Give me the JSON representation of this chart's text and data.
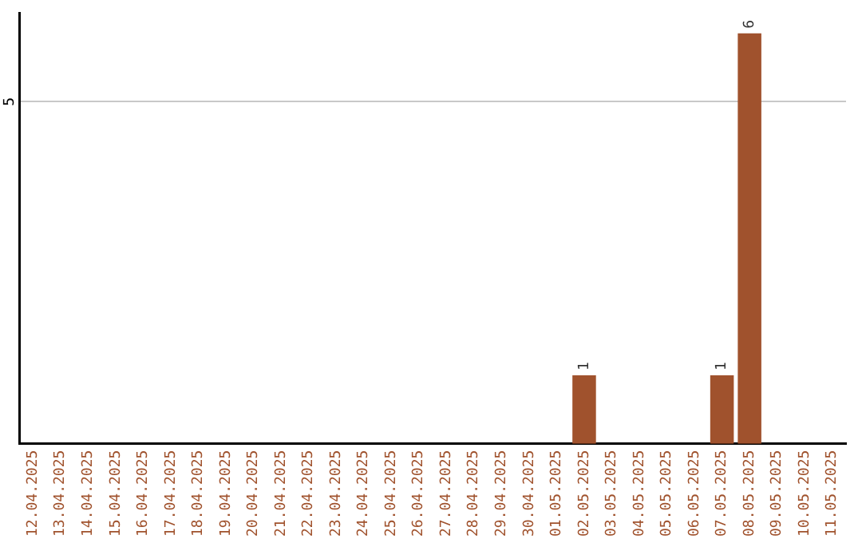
{
  "chart_data": {
    "type": "bar",
    "categories": [
      "12.04.2025",
      "13.04.2025",
      "14.04.2025",
      "15.04.2025",
      "16.04.2025",
      "17.04.2025",
      "18.04.2025",
      "19.04.2025",
      "20.04.2025",
      "21.04.2025",
      "22.04.2025",
      "23.04.2025",
      "24.04.2025",
      "25.04.2025",
      "26.04.2025",
      "27.04.2025",
      "28.04.2025",
      "29.04.2025",
      "30.04.2025",
      "01.05.2025",
      "02.05.2025",
      "03.05.2025",
      "04.05.2025",
      "05.05.2025",
      "06.05.2025",
      "07.05.2025",
      "08.05.2025",
      "09.05.2025",
      "10.05.2025",
      "11.05.2025"
    ],
    "values": [
      null,
      null,
      null,
      null,
      null,
      null,
      null,
      null,
      null,
      null,
      null,
      null,
      null,
      null,
      null,
      null,
      null,
      null,
      null,
      null,
      1,
      null,
      null,
      null,
      null,
      1,
      6,
      null,
      null,
      null
    ],
    "data_labels": true,
    "color": "#a0522d",
    "ylim": [
      0,
      6.3
    ],
    "yticks": [
      5
    ],
    "grid": "y",
    "legend": false
  }
}
